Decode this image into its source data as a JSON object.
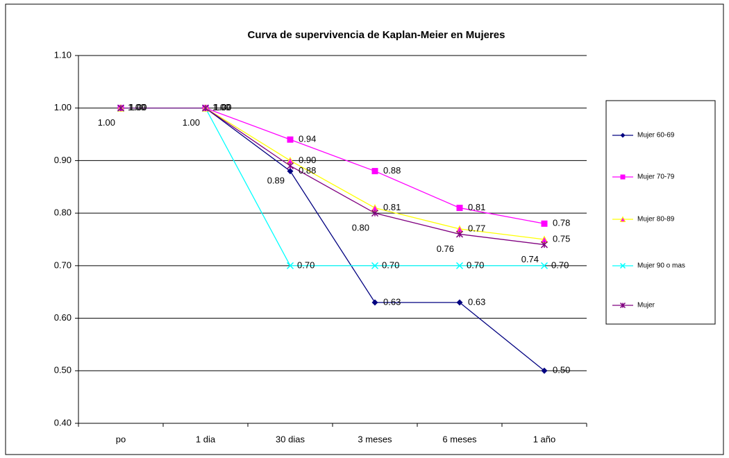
{
  "chart_data": {
    "type": "line",
    "title": "Curva de supervivencia  de  Kaplan-Meier en Mujeres",
    "categories": [
      "po",
      "1 dia",
      "30 dias",
      "3 meses",
      "6 meses",
      "1 año"
    ],
    "ylim": [
      0.4,
      1.1
    ],
    "yticks": [
      {
        "value": 0.4,
        "label": "0.40"
      },
      {
        "value": 0.5,
        "label": "0.50"
      },
      {
        "value": 0.6,
        "label": "0.60"
      },
      {
        "value": 0.7,
        "label": "0.70"
      },
      {
        "value": 0.8,
        "label": "0.80"
      },
      {
        "value": 0.9,
        "label": "0.90"
      },
      {
        "value": 1.0,
        "label": "1.00"
      },
      {
        "value": 1.1,
        "label": "1.10"
      }
    ],
    "grid": true,
    "legend": "right",
    "series": [
      {
        "name": "Mujer 60-69",
        "color": "#000080",
        "marker": "diamond",
        "values": [
          1,
          1,
          0.88,
          0.63,
          0.63,
          0.5
        ],
        "value_labels": [
          "1.00",
          "1.00",
          "0.88",
          "0.63",
          "0.63",
          "0.50"
        ]
      },
      {
        "name": "Mujer 70-79",
        "color": "#ff00ff",
        "marker": "square",
        "values": [
          1,
          1,
          0.94,
          0.88,
          0.81,
          0.78
        ],
        "value_labels": [
          "1.00",
          "1.00",
          "0.94",
          "0.88",
          "0.81",
          "0.78"
        ]
      },
      {
        "name": "Mujer 80-89",
        "color": "#ffff00",
        "marker": "triangle",
        "values": [
          1,
          1,
          0.9,
          0.81,
          0.77,
          0.75
        ],
        "value_labels": [
          "1.00",
          "1.00",
          "0.90",
          "0.81",
          "0.77",
          "0.75"
        ]
      },
      {
        "name": "Mujer 90 o mas",
        "color": "#00ffff",
        "marker": "x",
        "values": [
          1,
          1,
          0.7,
          0.7,
          0.7,
          0.7
        ],
        "value_labels": [
          "1.00",
          "1.00",
          "0.70",
          "0.70",
          "0.70",
          "0.70"
        ]
      },
      {
        "name": "Mujer",
        "color": "#800080",
        "marker": "star",
        "values": [
          1,
          1,
          0.89,
          0.8,
          0.76,
          0.74
        ],
        "value_labels": [
          "1.00",
          "1.00",
          "0.89",
          "0.80",
          "0.76",
          "0.74"
        ]
      }
    ]
  }
}
